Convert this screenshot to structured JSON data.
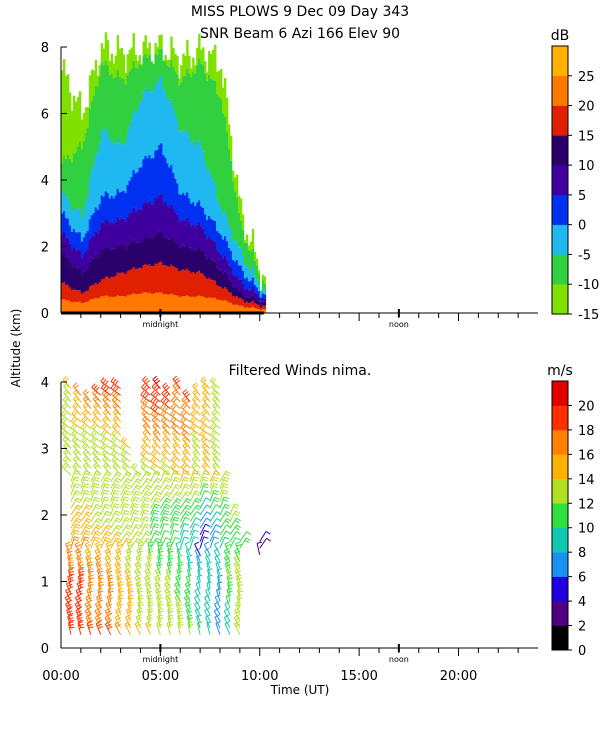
{
  "title_line1": "MISS PLOWS   9 Dec 09 Day 343",
  "title_line2": "SNR Beam 6 Azi 166 Elev 90",
  "ylabel_shared": "Altitude (km)",
  "chart_data": [
    {
      "type": "heatmap",
      "title": "SNR Beam 6 Azi 166 Elev 90",
      "ylabel": "Altitude (km)",
      "xlim": [
        0,
        24
      ],
      "ylim": [
        0,
        8
      ],
      "y_ticks": [
        "0",
        "2",
        "4",
        "6",
        "8"
      ],
      "x_annotations": [
        "midnight",
        "noon"
      ],
      "colorbar": {
        "unit": "dB",
        "range": [
          -15,
          30
        ],
        "ticks": [
          "-15",
          "-10",
          "-5",
          "0",
          "5",
          "10",
          "15",
          "20",
          "25"
        ],
        "colors": [
          "#80e000",
          "#30d040",
          "#20b8f0",
          "#0030f0",
          "#4000a0",
          "#2a006a",
          "#e02000",
          "#ff7800",
          "#ffb000"
        ]
      },
      "data_extent_hours": [
        0,
        10.2
      ],
      "columns": [
        {
          "t": 0.0,
          "top_km": 7.3,
          "bands": [
            0.4,
            0.9,
            1.8,
            2.4,
            3.0,
            3.6,
            4.5
          ]
        },
        {
          "t": 1.0,
          "top_km": 6.0,
          "bands": [
            0.3,
            0.6,
            1.2,
            1.7,
            2.2,
            2.9,
            5.0
          ]
        },
        {
          "t": 2.0,
          "top_km": 8.0,
          "bands": [
            0.5,
            1.0,
            1.9,
            2.7,
            3.5,
            5.5,
            7.5
          ]
        },
        {
          "t": 3.0,
          "top_km": 7.8,
          "bands": [
            0.5,
            1.2,
            2.0,
            2.8,
            3.6,
            5.0,
            7.0
          ]
        },
        {
          "t": 4.0,
          "top_km": 7.9,
          "bands": [
            0.6,
            1.4,
            2.2,
            3.2,
            4.5,
            6.5,
            7.6
          ]
        },
        {
          "t": 5.0,
          "top_km": 8.0,
          "bands": [
            0.6,
            1.5,
            2.4,
            3.5,
            5.0,
            7.0,
            7.8
          ]
        },
        {
          "t": 6.0,
          "top_km": 7.6,
          "bands": [
            0.5,
            1.3,
            2.0,
            2.8,
            3.6,
            5.5,
            7.0
          ]
        },
        {
          "t": 7.0,
          "top_km": 7.9,
          "bands": [
            0.5,
            1.2,
            1.9,
            2.6,
            3.2,
            5.0,
            7.5
          ]
        },
        {
          "t": 8.0,
          "top_km": 7.5,
          "bands": [
            0.4,
            0.8,
            1.3,
            1.8,
            2.4,
            3.2,
            6.5
          ]
        },
        {
          "t": 9.0,
          "top_km": 3.0,
          "bands": [
            0.2,
            0.4,
            0.6,
            0.9,
            1.3,
            1.8,
            2.6
          ]
        },
        {
          "t": 10.2,
          "top_km": 0.9,
          "bands": [
            0.1,
            0.2,
            0.3,
            0.4,
            0.5,
            0.6,
            0.8
          ]
        }
      ]
    },
    {
      "type": "scatter",
      "title": "Filtered Winds nima.",
      "xlabel": "Time (UT)",
      "ylabel": "Altitude (km)",
      "xlim": [
        0,
        24
      ],
      "ylim": [
        0,
        4
      ],
      "x_ticks": [
        "00:00",
        "05:00",
        "10:00",
        "15:00",
        "20:00"
      ],
      "y_ticks": [
        "0",
        "1",
        "2",
        "3",
        "4"
      ],
      "x_annotations": [
        "midnight",
        "noon"
      ],
      "colorbar": {
        "unit": "m/s",
        "range": [
          0,
          22
        ],
        "ticks": [
          "0",
          "2",
          "4",
          "6",
          "8",
          "10",
          "12",
          "14",
          "16",
          "18",
          "20"
        ],
        "colors": [
          "#000000",
          "#500080",
          "#2000e0",
          "#1890f0",
          "#10c8b0",
          "#30e040",
          "#b0e020",
          "#ffb000",
          "#ff8000",
          "#ff3000",
          "#e00000"
        ]
      },
      "columns": [
        {
          "t": 0.5,
          "top_km": 3.9,
          "speed_by_height": [
            [
              0.2,
              19
            ],
            [
              1.0,
              18
            ],
            [
              2.0,
              14
            ],
            [
              3.0,
              13
            ],
            [
              3.9,
              14
            ]
          ]
        },
        {
          "t": 1.0,
          "top_km": 3.8,
          "speed_by_height": [
            [
              0.2,
              19
            ],
            [
              1.0,
              18
            ],
            [
              2.0,
              14
            ],
            [
              3.0,
              13
            ],
            [
              3.8,
              16
            ]
          ]
        },
        {
          "t": 1.5,
          "top_km": 3.7,
          "speed_by_height": [
            [
              0.2,
              18
            ],
            [
              1.0,
              17
            ],
            [
              2.0,
              13
            ],
            [
              3.0,
              12
            ],
            [
              3.7,
              17
            ]
          ]
        },
        {
          "t": 2.0,
          "top_km": 3.8,
          "speed_by_height": [
            [
              0.2,
              18
            ],
            [
              1.0,
              17
            ],
            [
              2.0,
              13
            ],
            [
              3.0,
              12
            ],
            [
              3.8,
              18
            ]
          ]
        },
        {
          "t": 2.5,
          "top_km": 3.9,
          "speed_by_height": [
            [
              0.2,
              18
            ],
            [
              1.0,
              16
            ],
            [
              2.0,
              13
            ],
            [
              3.0,
              13
            ],
            [
              3.9,
              19
            ]
          ]
        },
        {
          "t": 3.0,
          "top_km": 3.9,
          "speed_by_height": [
            [
              0.2,
              16
            ],
            [
              1.0,
              15
            ],
            [
              2.0,
              13
            ],
            [
              3.0,
              13
            ],
            [
              3.9,
              19
            ]
          ]
        },
        {
          "t": 3.5,
          "top_km": 3.0,
          "speed_by_height": [
            [
              0.2,
              15
            ],
            [
              1.0,
              14
            ],
            [
              2.0,
              13
            ],
            [
              3.0,
              14
            ]
          ]
        },
        {
          "t": 4.0,
          "top_km": 2.6,
          "speed_by_height": [
            [
              0.2,
              14
            ],
            [
              1.0,
              13
            ],
            [
              2.0,
              12
            ],
            [
              2.6,
              13
            ]
          ]
        },
        {
          "t": 4.5,
          "top_km": 3.9,
          "speed_by_height": [
            [
              0.2,
              14
            ],
            [
              1.0,
              13
            ],
            [
              1.6,
              11
            ],
            [
              2.5,
              13
            ],
            [
              3.9,
              19
            ]
          ]
        },
        {
          "t": 5.0,
          "top_km": 3.9,
          "speed_by_height": [
            [
              0.2,
              13
            ],
            [
              1.0,
              12
            ],
            [
              1.6,
              10
            ],
            [
              2.5,
              13
            ],
            [
              3.9,
              20
            ]
          ]
        },
        {
          "t": 5.5,
          "top_km": 3.8,
          "speed_by_height": [
            [
              0.2,
              13
            ],
            [
              1.0,
              12
            ],
            [
              1.6,
              10
            ],
            [
              2.5,
              13
            ],
            [
              3.8,
              19
            ]
          ]
        },
        {
          "t": 6.0,
          "top_km": 3.9,
          "speed_by_height": [
            [
              0.2,
              13
            ],
            [
              1.0,
              11
            ],
            [
              1.6,
              9
            ],
            [
              2.5,
              14
            ],
            [
              3.9,
              18
            ]
          ]
        },
        {
          "t": 6.5,
          "top_km": 3.7,
          "speed_by_height": [
            [
              0.2,
              12
            ],
            [
              1.0,
              10
            ],
            [
              1.6,
              8
            ],
            [
              2.5,
              14
            ],
            [
              3.7,
              18
            ]
          ]
        },
        {
          "t": 7.0,
          "top_km": 3.8,
          "speed_by_height": [
            [
              0.2,
              10
            ],
            [
              1.0,
              9
            ],
            [
              1.6,
              4
            ],
            [
              2.5,
              13
            ],
            [
              3.8,
              15
            ]
          ]
        },
        {
          "t": 7.5,
          "top_km": 3.9,
          "speed_by_height": [
            [
              0.2,
              8
            ],
            [
              1.0,
              9
            ],
            [
              1.6,
              7
            ],
            [
              2.5,
              14
            ],
            [
              3.9,
              14
            ]
          ]
        },
        {
          "t": 8.0,
          "top_km": 3.9,
          "speed_by_height": [
            [
              0.2,
              6
            ],
            [
              1.0,
              8
            ],
            [
              1.6,
              10
            ],
            [
              2.5,
              13
            ],
            [
              3.9,
              13
            ]
          ]
        },
        {
          "t": 8.5,
          "top_km": 2.0,
          "speed_by_height": [
            [
              0.2,
              8
            ],
            [
              1.0,
              12
            ],
            [
              1.6,
              10
            ],
            [
              2.0,
              13
            ]
          ]
        },
        {
          "t": 9.0,
          "top_km": 1.6,
          "speed_by_height": [
            [
              0.2,
              12
            ],
            [
              1.0,
              13
            ],
            [
              1.6,
              10
            ]
          ]
        },
        {
          "t": 10.0,
          "top_km": 1.65,
          "speed_by_height": [
            [
              1.4,
              3
            ],
            [
              1.65,
              5
            ]
          ]
        }
      ]
    }
  ]
}
